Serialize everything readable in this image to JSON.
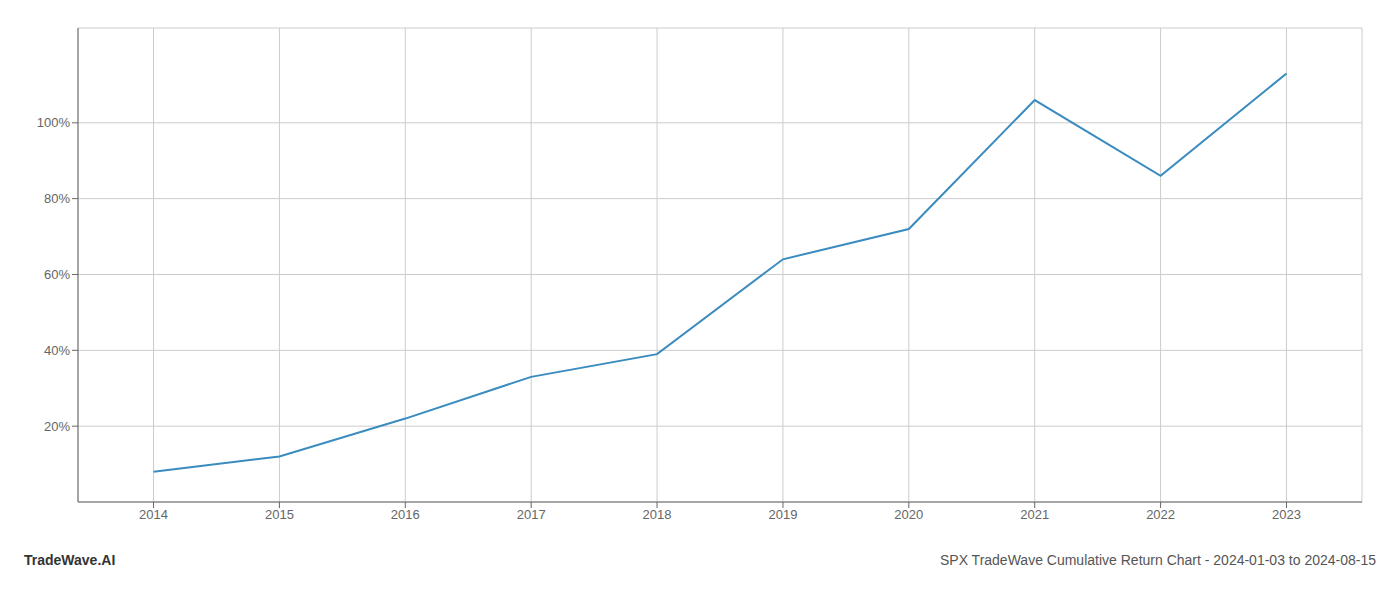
{
  "chart_data": {
    "type": "line",
    "x": [
      2014,
      2015,
      2016,
      2017,
      2018,
      2019,
      2020,
      2021,
      2022,
      2023
    ],
    "values": [
      8.0,
      12.0,
      22.0,
      33.0,
      39.0,
      64.0,
      72.0,
      106.0,
      86.0,
      113.0
    ],
    "color": "#3a8bbf",
    "xlim": [
      2013.4,
      2023.6
    ],
    "ylim": [
      0,
      125
    ],
    "xticks": [
      2014,
      2015,
      2016,
      2017,
      2018,
      2019,
      2020,
      2021,
      2022,
      2023
    ],
    "yticks": [
      {
        "value": 20,
        "label": "20%"
      },
      {
        "value": 40,
        "label": "40%"
      },
      {
        "value": 60,
        "label": "60%"
      },
      {
        "value": 80,
        "label": "80%"
      },
      {
        "value": 100,
        "label": "100%"
      }
    ],
    "grid": true,
    "annotations": [
      "TradeWave.AI",
      "SPX TradeWave Cumulative Return Chart - 2024-01-03 to 2024-08-15"
    ]
  }
}
